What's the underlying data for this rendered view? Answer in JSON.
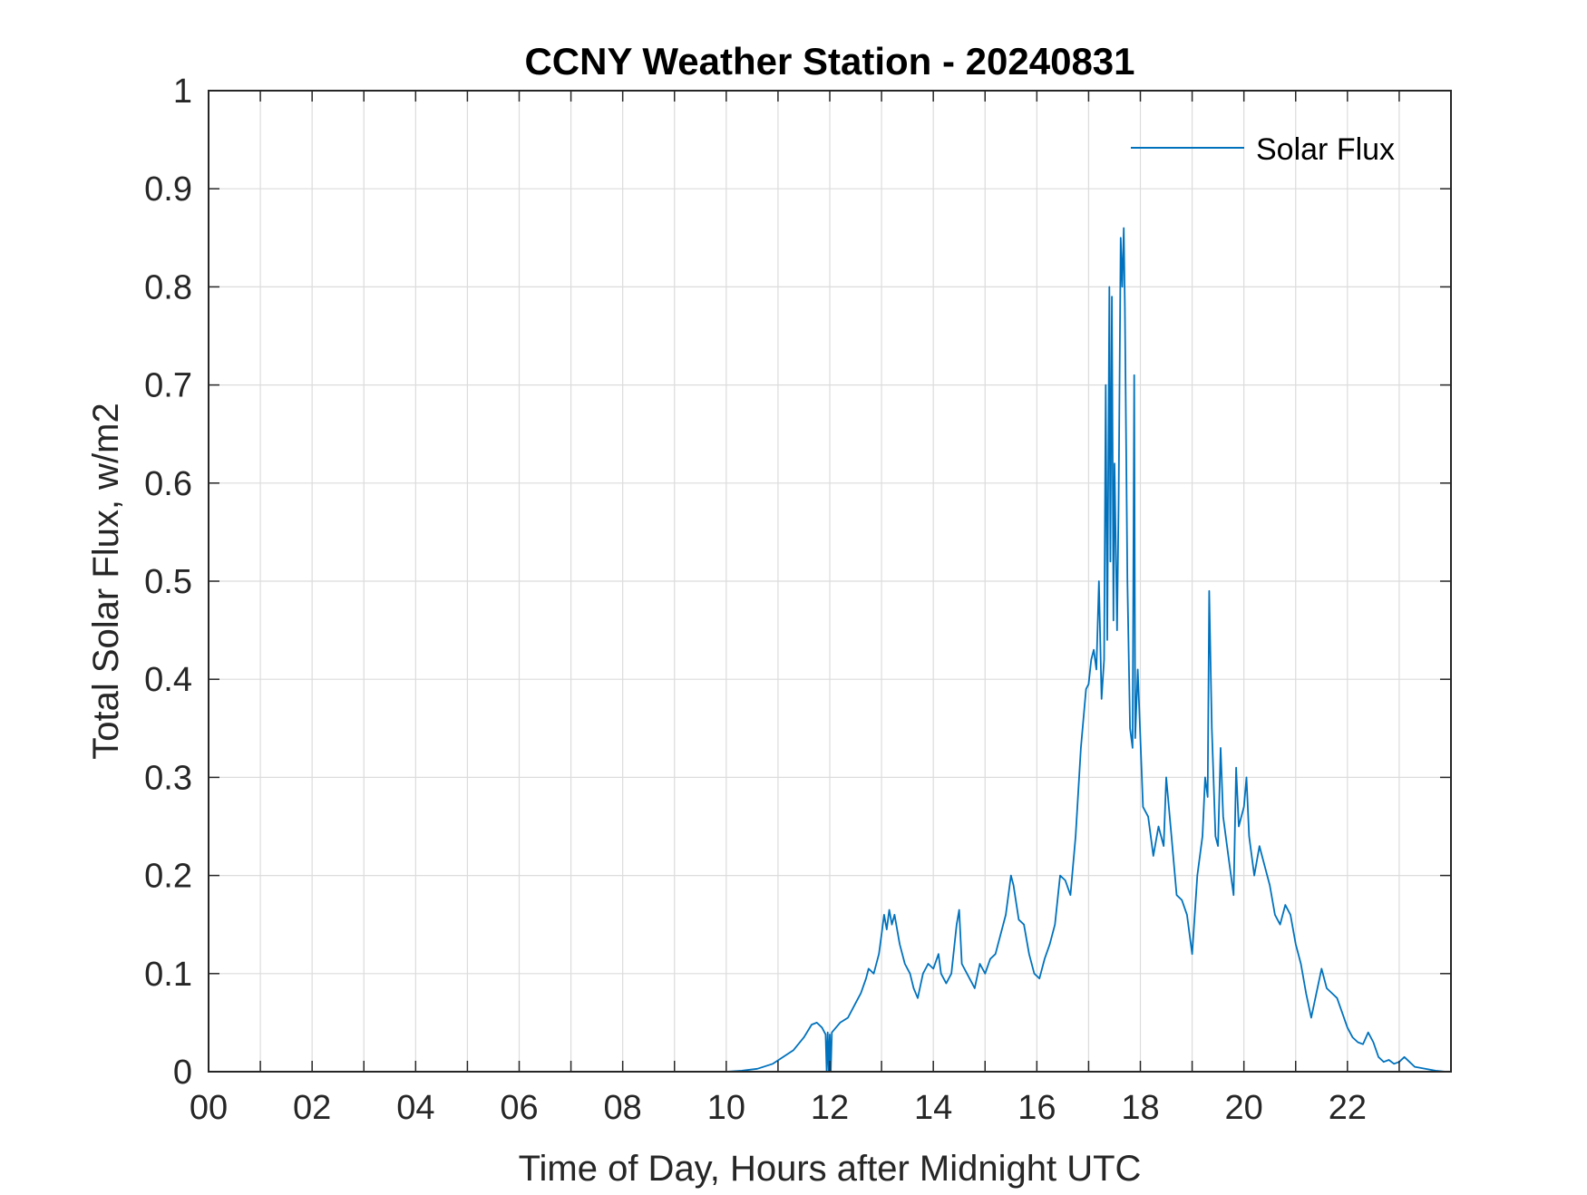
{
  "colors": {
    "series": "#0072bd",
    "axis": "#262626",
    "grid": "#dcdcdc",
    "background": "#ffffff"
  },
  "chart_data": {
    "type": "line",
    "title": "CCNY Weather Station - 20240831",
    "xlabel": "Time of Day, Hours after Midnight UTC",
    "ylabel": "Total Solar Flux, w/m2",
    "xlim": [
      0,
      24
    ],
    "ylim": [
      0,
      1
    ],
    "grid": true,
    "legend": {
      "position": "top-right",
      "entries": [
        "Solar Flux"
      ]
    },
    "x_ticks": [
      0,
      2,
      4,
      6,
      8,
      10,
      12,
      14,
      16,
      18,
      20,
      22
    ],
    "x_tick_labels": [
      "00",
      "02",
      "04",
      "06",
      "08",
      "10",
      "12",
      "14",
      "16",
      "18",
      "20",
      "22"
    ],
    "x_minor_grid": [
      1,
      3,
      5,
      7,
      9,
      11,
      13,
      15,
      17,
      19,
      21,
      23
    ],
    "y_ticks": [
      0,
      0.1,
      0.2,
      0.3,
      0.4,
      0.5,
      0.6,
      0.7,
      0.8,
      0.9,
      1
    ],
    "y_tick_labels": [
      "0",
      "0.1",
      "0.2",
      "0.3",
      "0.4",
      "0.5",
      "0.6",
      "0.7",
      "0.8",
      "0.9",
      "1"
    ],
    "series": [
      {
        "name": "Solar Flux",
        "x": [
          0,
          10.0,
          10.3,
          10.6,
          10.9,
          11.1,
          11.3,
          11.5,
          11.65,
          11.75,
          11.85,
          11.92,
          11.94,
          11.96,
          11.98,
          12.0,
          12.02,
          12.04,
          12.2,
          12.35,
          12.5,
          12.6,
          12.7,
          12.75,
          12.85,
          12.95,
          13.0,
          13.05,
          13.1,
          13.15,
          13.2,
          13.25,
          13.35,
          13.45,
          13.55,
          13.62,
          13.7,
          13.8,
          13.9,
          14.0,
          14.1,
          14.15,
          14.25,
          14.35,
          14.45,
          14.5,
          14.55,
          14.65,
          14.75,
          14.8,
          14.9,
          15.0,
          15.1,
          15.2,
          15.3,
          15.4,
          15.5,
          15.55,
          15.65,
          15.75,
          15.85,
          15.95,
          16.05,
          16.15,
          16.25,
          16.35,
          16.45,
          16.55,
          16.65,
          16.75,
          16.85,
          16.95,
          17.0,
          17.05,
          17.1,
          17.15,
          17.2,
          17.25,
          17.3,
          17.33,
          17.36,
          17.4,
          17.42,
          17.45,
          17.48,
          17.5,
          17.55,
          17.58,
          17.62,
          17.65,
          17.68,
          17.7,
          17.75,
          17.8,
          17.85,
          17.88,
          17.9,
          17.95,
          18.05,
          18.15,
          18.25,
          18.35,
          18.45,
          18.5,
          18.6,
          18.7,
          18.8,
          18.9,
          19.0,
          19.1,
          19.2,
          19.25,
          19.3,
          19.33,
          19.38,
          19.45,
          19.5,
          19.55,
          19.6,
          19.7,
          19.8,
          19.85,
          19.9,
          20.0,
          20.05,
          20.1,
          20.2,
          20.3,
          20.4,
          20.5,
          20.6,
          20.7,
          20.8,
          20.9,
          21.0,
          21.1,
          21.2,
          21.3,
          21.4,
          21.5,
          21.6,
          21.7,
          21.8,
          21.9,
          22.0,
          22.1,
          22.2,
          22.3,
          22.4,
          22.5,
          22.6,
          22.7,
          22.8,
          22.9,
          23.0,
          23.1,
          23.2,
          23.3,
          23.5,
          23.7,
          23.9
        ],
        "y": [
          0,
          0,
          0.001,
          0.003,
          0.008,
          0.015,
          0.022,
          0.035,
          0.048,
          0.05,
          0.045,
          0.038,
          0.0,
          0.04,
          0.0,
          0.038,
          0.0,
          0.04,
          0.05,
          0.055,
          0.07,
          0.08,
          0.095,
          0.105,
          0.1,
          0.12,
          0.14,
          0.16,
          0.145,
          0.165,
          0.15,
          0.16,
          0.13,
          0.11,
          0.1,
          0.085,
          0.075,
          0.1,
          0.11,
          0.105,
          0.12,
          0.1,
          0.09,
          0.1,
          0.15,
          0.165,
          0.11,
          0.1,
          0.09,
          0.085,
          0.11,
          0.1,
          0.115,
          0.12,
          0.14,
          0.16,
          0.2,
          0.19,
          0.155,
          0.15,
          0.12,
          0.1,
          0.095,
          0.115,
          0.13,
          0.15,
          0.2,
          0.195,
          0.18,
          0.24,
          0.33,
          0.39,
          0.395,
          0.42,
          0.43,
          0.41,
          0.5,
          0.38,
          0.42,
          0.7,
          0.44,
          0.8,
          0.52,
          0.79,
          0.46,
          0.62,
          0.45,
          0.58,
          0.85,
          0.8,
          0.86,
          0.78,
          0.5,
          0.35,
          0.33,
          0.71,
          0.34,
          0.41,
          0.27,
          0.26,
          0.22,
          0.25,
          0.23,
          0.3,
          0.24,
          0.18,
          0.175,
          0.16,
          0.12,
          0.2,
          0.24,
          0.3,
          0.28,
          0.49,
          0.35,
          0.24,
          0.23,
          0.33,
          0.26,
          0.22,
          0.18,
          0.31,
          0.25,
          0.27,
          0.3,
          0.24,
          0.2,
          0.23,
          0.21,
          0.19,
          0.16,
          0.15,
          0.17,
          0.16,
          0.13,
          0.11,
          0.08,
          0.055,
          0.08,
          0.105,
          0.085,
          0.08,
          0.075,
          0.06,
          0.045,
          0.035,
          0.03,
          0.028,
          0.04,
          0.03,
          0.015,
          0.01,
          0.012,
          0.008,
          0.01,
          0.015,
          0.01,
          0.005,
          0.003,
          0.001,
          0.0
        ]
      }
    ]
  }
}
